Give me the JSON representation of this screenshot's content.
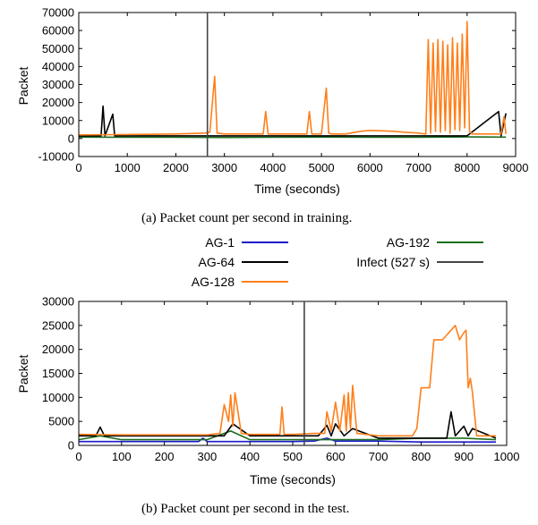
{
  "figure": {
    "caption_a": "(a)  Packet count per second in training.",
    "caption_b": "(b)  Packet count per second in the test."
  },
  "legend": {
    "entries": [
      {
        "name": "AG-1",
        "color": "#1a1acc"
      },
      {
        "name": "AG-64",
        "color": "#000000"
      },
      {
        "name": "AG-128",
        "color": "#ff7f1a"
      },
      {
        "name": "AG-192",
        "color": "#1e6e1e"
      },
      {
        "name": "Infect (527 s)",
        "color": "#444444"
      }
    ]
  },
  "chart_data": [
    {
      "type": "line",
      "xlabel": "Time (seconds)",
      "ylabel": "Packet",
      "xlim": [
        0,
        9000
      ],
      "ylim": [
        -10000,
        70000
      ],
      "xticks": [
        "0",
        "1000",
        "2000",
        "3000",
        "4000",
        "5000",
        "6000",
        "7000",
        "8000",
        "9000"
      ],
      "yticks": [
        "-10000",
        "0",
        "10000",
        "20000",
        "30000",
        "40000",
        "50000",
        "60000",
        "70000"
      ],
      "infect_line_x": 2650,
      "series": [
        {
          "name": "AG-192",
          "color": "#1e6e1e",
          "x": [
            0,
            1000,
            2000,
            3000,
            4000,
            5000,
            6000,
            7000,
            8000,
            8800
          ],
          "y": [
            800,
            700,
            700,
            600,
            700,
            800,
            700,
            700,
            900,
            800
          ]
        },
        {
          "name": "AG-64",
          "color": "#000000",
          "x": [
            0,
            200,
            460,
            500,
            540,
            700,
            740,
            1000,
            2000,
            3000,
            4000,
            5000,
            6000,
            7000,
            8000,
            8650,
            8700,
            8800
          ],
          "y": [
            1500,
            1500,
            1500,
            18000,
            1500,
            13500,
            1500,
            1500,
            1500,
            1500,
            1500,
            1500,
            1500,
            1500,
            1500,
            15000,
            1500,
            14000
          ]
        },
        {
          "name": "AG-128",
          "color": "#ff7f1a",
          "x": [
            0,
            1000,
            2000,
            2600,
            2700,
            2800,
            2850,
            3000,
            3800,
            3850,
            3900,
            4500,
            4700,
            4750,
            4800,
            5000,
            5100,
            5150,
            5200,
            5500,
            5800,
            6000,
            6500,
            6700,
            7000,
            7150,
            7200,
            7250,
            7300,
            7350,
            7400,
            7450,
            7500,
            7550,
            7600,
            7650,
            7700,
            7750,
            7800,
            7850,
            7900,
            7950,
            8000,
            8050,
            8100,
            8500,
            8700,
            8760,
            8800
          ],
          "y": [
            2000,
            2200,
            2500,
            3000,
            3500,
            34500,
            3000,
            2500,
            2500,
            15000,
            2500,
            2500,
            2500,
            15000,
            2500,
            2500,
            28000,
            3000,
            2500,
            2500,
            4000,
            4500,
            4000,
            3500,
            3000,
            2500,
            55000,
            3000,
            53000,
            4000,
            55000,
            3500,
            54000,
            4500,
            52000,
            3000,
            56000,
            5000,
            53000,
            4500,
            58000,
            6000,
            65000,
            4000,
            2500,
            2500,
            2500,
            12000,
            2500
          ]
        }
      ]
    },
    {
      "type": "line",
      "xlabel": "Time (seconds)",
      "ylabel": "Packet",
      "xlim": [
        0,
        1000
      ],
      "ylim": [
        0,
        30000
      ],
      "xticks": [
        "0",
        "100",
        "200",
        "300",
        "400",
        "500",
        "600",
        "700",
        "800",
        "900",
        "1000"
      ],
      "yticks": [
        "0",
        "5000",
        "10000",
        "15000",
        "20000",
        "25000",
        "30000"
      ],
      "infect_line_x": 527,
      "series": [
        {
          "name": "AG-1",
          "color": "#1a1acc",
          "x": [
            0,
            200,
            280,
            290,
            300,
            400,
            500,
            550,
            580,
            600,
            700,
            800,
            900,
            975
          ],
          "y": [
            800,
            800,
            800,
            1500,
            800,
            800,
            800,
            900,
            1500,
            900,
            900,
            700,
            700,
            700
          ]
        },
        {
          "name": "AG-192",
          "color": "#1e6e1e",
          "x": [
            0,
            50,
            100,
            200,
            300,
            355,
            400,
            450,
            500,
            600,
            700,
            800,
            900,
            975
          ],
          "y": [
            1200,
            2000,
            1200,
            1200,
            1200,
            3000,
            1200,
            1200,
            1200,
            1200,
            1200,
            1500,
            1500,
            1200
          ]
        },
        {
          "name": "AG-64",
          "color": "#000000",
          "x": [
            0,
            40,
            50,
            60,
            100,
            200,
            300,
            340,
            360,
            400,
            450,
            500,
            560,
            580,
            590,
            600,
            620,
            640,
            700,
            800,
            860,
            870,
            880,
            900,
            910,
            920,
            975
          ],
          "y": [
            2000,
            2000,
            3800,
            2000,
            2000,
            2000,
            2000,
            2000,
            4500,
            2000,
            2000,
            2000,
            2000,
            4200,
            2000,
            4500,
            2000,
            3500,
            1500,
            1500,
            1500,
            7000,
            2000,
            4000,
            2000,
            3500,
            1500
          ]
        },
        {
          "name": "AG-128",
          "color": "#ff7f1a",
          "x": [
            0,
            100,
            200,
            300,
            330,
            340,
            350,
            355,
            360,
            365,
            380,
            400,
            450,
            470,
            475,
            480,
            500,
            550,
            575,
            580,
            590,
            600,
            610,
            620,
            625,
            630,
            635,
            640,
            650,
            700,
            780,
            790,
            800,
            810,
            820,
            830,
            840,
            850,
            860,
            870,
            880,
            890,
            900,
            905,
            910,
            915,
            920,
            930,
            975
          ],
          "y": [
            2300,
            2200,
            2200,
            2200,
            2500,
            8500,
            5000,
            10500,
            4000,
            11000,
            2500,
            2300,
            2300,
            2300,
            8000,
            2300,
            2300,
            2500,
            2500,
            7000,
            3000,
            9000,
            3000,
            10500,
            3000,
            11000,
            3500,
            12500,
            2500,
            2000,
            2000,
            3500,
            12000,
            12000,
            12000,
            22000,
            22000,
            22000,
            23000,
            24000,
            25000,
            22000,
            23500,
            24000,
            12000,
            14000,
            11000,
            2000,
            2000
          ]
        }
      ]
    }
  ]
}
